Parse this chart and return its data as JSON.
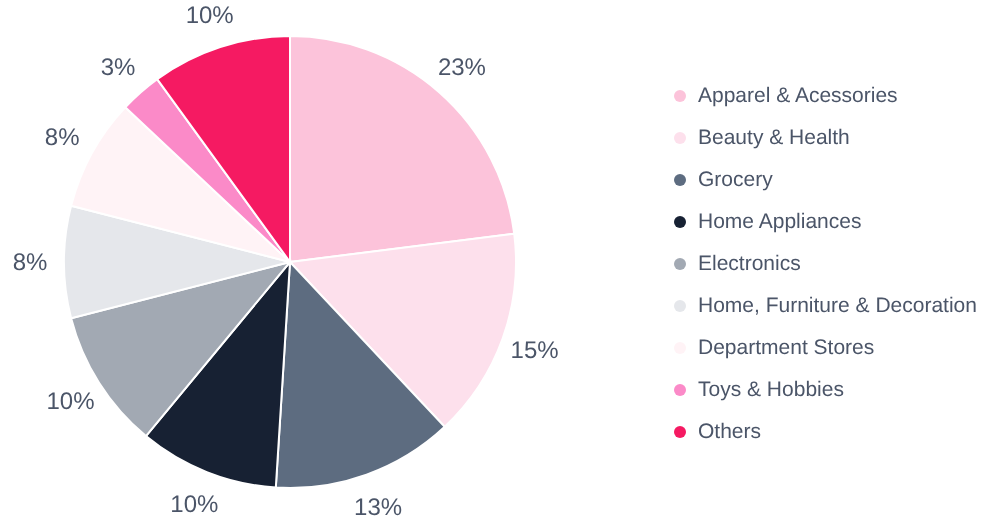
{
  "chart_data": {
    "type": "pie",
    "categories": [
      "Apparel & Acessories",
      "Beauty & Health",
      "Grocery",
      "Home Appliances",
      "Electronics",
      "Home, Furniture & Decoration",
      "Department Stores",
      "Toys & Hobbies",
      "Others"
    ],
    "values": [
      23,
      15,
      13,
      10,
      10,
      8,
      8,
      3,
      10
    ],
    "colors": [
      "#fcc3da",
      "#fde0ec",
      "#5d6c80",
      "#172133",
      "#a2a9b3",
      "#e5e7eb",
      "#fff3f6",
      "#fb8ac8",
      "#f51a62"
    ],
    "value_labels": [
      "23%",
      "15%",
      "13%",
      "10%",
      "10%",
      "8%",
      "8%",
      "3%",
      "10%"
    ],
    "legend": "right"
  }
}
